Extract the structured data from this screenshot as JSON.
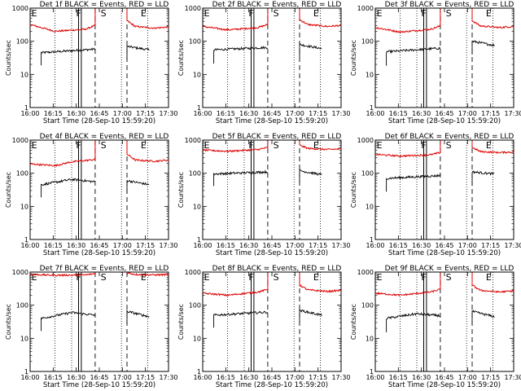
{
  "figure": {
    "xlabel": "Start Time (28-Sep-10 15:59:20)",
    "ylabel": "Counts/sec",
    "x_tick_labels": [
      "16:00",
      "16:15",
      "16:30",
      "16:45",
      "17:00",
      "17:15",
      "17:30"
    ],
    "y_tick_labels": [
      "1",
      "10",
      "100",
      "1000"
    ],
    "colors": {
      "events": "#000000",
      "lld": "#dd0000"
    }
  },
  "chart_data": [
    {
      "type": "line",
      "panel": 1,
      "title": "Det 1f BLACK = Events, RED = LLD",
      "xlabel": "Start Time (28-Sep-10 15:59:20)",
      "ylabel": "Counts/sec",
      "yscale": "log",
      "xlim": [
        0,
        100
      ],
      "ylim": [
        1,
        1000
      ],
      "series": [
        {
          "name": "Events",
          "color": "#000000",
          "segments": [
            {
              "x": [
                8,
                47
              ],
              "y": [
                45,
                58
              ]
            },
            {
              "x": [
                70,
                86
              ],
              "y": [
                70,
                55
              ]
            }
          ]
        },
        {
          "name": "LLD",
          "color": "#dd0000",
          "segments": [
            {
              "x": [
                0,
                18,
                40,
                47
              ],
              "y": [
                320,
                200,
                230,
                300
              ]
            },
            {
              "x": [
                70,
                76,
                90,
                100
              ],
              "y": [
                420,
                280,
                250,
                270
              ]
            }
          ]
        }
      ],
      "markers": [
        {
          "label": "E",
          "x": 3
        },
        {
          "label": "F",
          "x": 35
        },
        {
          "label": "S",
          "x": 53
        },
        {
          "label": "E",
          "x": 82
        }
      ]
    },
    {
      "type": "line",
      "panel": 2,
      "title": "Det 2f BLACK = Events, RED = LLD",
      "xlabel": "Start Time (28-Sep-10 15:59:20)",
      "ylabel": "Counts/sec",
      "yscale": "log",
      "xlim": [
        0,
        100
      ],
      "ylim": [
        1,
        1000
      ],
      "series": [
        {
          "name": "Events",
          "color": "#000000",
          "segments": [
            {
              "x": [
                8,
                47
              ],
              "y": [
                55,
                65
              ]
            },
            {
              "x": [
                70,
                86
              ],
              "y": [
                80,
                60
              ]
            }
          ]
        },
        {
          "name": "LLD",
          "color": "#dd0000",
          "segments": [
            {
              "x": [
                0,
                18,
                40,
                47
              ],
              "y": [
                280,
                220,
                260,
                320
              ]
            },
            {
              "x": [
                70,
                76,
                90,
                100
              ],
              "y": [
                450,
                320,
                280,
                300
              ]
            }
          ]
        }
      ],
      "markers": [
        {
          "label": "E",
          "x": 3
        },
        {
          "label": "F",
          "x": 35
        },
        {
          "label": "S",
          "x": 53
        },
        {
          "label": "E",
          "x": 82
        }
      ]
    },
    {
      "type": "line",
      "panel": 3,
      "title": "Det 3f BLACK = Events, RED = LLD",
      "xlabel": "Start Time (28-Sep-10 15:59:20)",
      "ylabel": "Counts/sec",
      "yscale": "log",
      "xlim": [
        0,
        100
      ],
      "ylim": [
        1,
        1000
      ],
      "series": [
        {
          "name": "Events",
          "color": "#000000",
          "segments": [
            {
              "x": [
                8,
                47
              ],
              "y": [
                48,
                62
              ]
            },
            {
              "x": [
                70,
                86
              ],
              "y": [
                100,
                75
              ]
            }
          ]
        },
        {
          "name": "LLD",
          "color": "#dd0000",
          "segments": [
            {
              "x": [
                0,
                18,
                40,
                47
              ],
              "y": [
                260,
                190,
                230,
                290
              ]
            },
            {
              "x": [
                70,
                76,
                90,
                100
              ],
              "y": [
                420,
                290,
                260,
                280
              ]
            }
          ]
        }
      ],
      "markers": [
        {
          "label": "E",
          "x": 3
        },
        {
          "label": "F",
          "x": 35
        },
        {
          "label": "S",
          "x": 53
        },
        {
          "label": "E",
          "x": 82
        }
      ]
    },
    {
      "type": "line",
      "panel": 4,
      "title": "Det 4f BLACK = Events, RED = LLD",
      "xlabel": "Start Time (28-Sep-10 15:59:20)",
      "ylabel": "Counts/sec",
      "yscale": "log",
      "xlim": [
        0,
        100
      ],
      "ylim": [
        1,
        1000
      ],
      "series": [
        {
          "name": "Events",
          "color": "#000000",
          "segments": [
            {
              "x": [
                8,
                30,
                47
              ],
              "y": [
                45,
                65,
                55
              ]
            },
            {
              "x": [
                70,
                86
              ],
              "y": [
                60,
                45
              ]
            }
          ]
        },
        {
          "name": "LLD",
          "color": "#dd0000",
          "segments": [
            {
              "x": [
                0,
                18,
                30,
                47
              ],
              "y": [
                190,
                170,
                220,
                260
              ]
            },
            {
              "x": [
                70,
                76,
                90,
                100
              ],
              "y": [
                380,
                250,
                230,
                250
              ]
            }
          ]
        }
      ],
      "markers": [
        {
          "label": "E",
          "x": 3
        },
        {
          "label": "F",
          "x": 35
        },
        {
          "label": "S",
          "x": 53
        },
        {
          "label": "E",
          "x": 82
        }
      ]
    },
    {
      "type": "line",
      "panel": 5,
      "title": "Det 5f BLACK = Events, RED = LLD",
      "xlabel": "Start Time (28-Sep-10 15:59:20)",
      "ylabel": "Counts/sec",
      "yscale": "log",
      "xlim": [
        0,
        100
      ],
      "ylim": [
        1,
        1000
      ],
      "series": [
        {
          "name": "Events",
          "color": "#000000",
          "segments": [
            {
              "x": [
                8,
                47
              ],
              "y": [
                95,
                110
              ]
            },
            {
              "x": [
                70,
                86
              ],
              "y": [
                120,
                90
              ]
            }
          ]
        },
        {
          "name": "LLD",
          "color": "#dd0000",
          "segments": [
            {
              "x": [
                0,
                18,
                40,
                47
              ],
              "y": [
                500,
                460,
                520,
                600
              ]
            },
            {
              "x": [
                70,
                76,
                90,
                100
              ],
              "y": [
                700,
                560,
                520,
                540
              ]
            }
          ]
        }
      ],
      "markers": [
        {
          "label": "E",
          "x": 3
        },
        {
          "label": "F",
          "x": 35
        },
        {
          "label": "S",
          "x": 53
        },
        {
          "label": "E",
          "x": 82
        }
      ]
    },
    {
      "type": "line",
      "panel": 6,
      "title": "Det 6f BLACK = Events, RED = LLD",
      "xlabel": "Start Time (28-Sep-10 15:59:20)",
      "ylabel": "Counts/sec",
      "yscale": "log",
      "xlim": [
        0,
        100
      ],
      "ylim": [
        1,
        1000
      ],
      "series": [
        {
          "name": "Events",
          "color": "#000000",
          "segments": [
            {
              "x": [
                8,
                47
              ],
              "y": [
                70,
                85
              ]
            },
            {
              "x": [
                70,
                86
              ],
              "y": [
                110,
                95
              ]
            }
          ]
        },
        {
          "name": "LLD",
          "color": "#dd0000",
          "segments": [
            {
              "x": [
                0,
                18,
                40,
                47
              ],
              "y": [
                370,
                330,
                360,
                420
              ]
            },
            {
              "x": [
                70,
                76,
                90,
                100
              ],
              "y": [
                600,
                450,
                420,
                440
              ]
            }
          ]
        }
      ],
      "markers": [
        {
          "label": "E",
          "x": 3
        },
        {
          "label": "F",
          "x": 35
        },
        {
          "label": "S",
          "x": 53
        },
        {
          "label": "E",
          "x": 82
        }
      ]
    },
    {
      "type": "line",
      "panel": 7,
      "title": "Det 7f BLACK = Events, RED = LLD",
      "xlabel": "Start Time (28-Sep-10 15:59:20)",
      "ylabel": "Counts/sec",
      "yscale": "log",
      "xlim": [
        0,
        100
      ],
      "ylim": [
        1,
        1000
      ],
      "series": [
        {
          "name": "Events",
          "color": "#000000",
          "segments": [
            {
              "x": [
                8,
                30,
                47
              ],
              "y": [
                40,
                60,
                50
              ]
            },
            {
              "x": [
                70,
                86
              ],
              "y": [
                65,
                45
              ]
            }
          ]
        },
        {
          "name": "LLD",
          "color": "#dd0000",
          "segments": [
            {
              "x": [
                0,
                18,
                40,
                47
              ],
              "y": [
                850,
                800,
                820,
                900
              ]
            },
            {
              "x": [
                70,
                76,
                90,
                100
              ],
              "y": [
                950,
                850,
                820,
                840
              ]
            }
          ]
        }
      ],
      "markers": [
        {
          "label": "E",
          "x": 3
        },
        {
          "label": "F",
          "x": 35
        },
        {
          "label": "S",
          "x": 53
        },
        {
          "label": "E",
          "x": 82
        }
      ]
    },
    {
      "type": "line",
      "panel": 8,
      "title": "Det 8f BLACK = Events, RED = LLD",
      "xlabel": "Start Time (28-Sep-10 15:59:20)",
      "ylabel": "Counts/sec",
      "yscale": "log",
      "xlim": [
        0,
        100
      ],
      "ylim": [
        1,
        1000
      ],
      "series": [
        {
          "name": "Events",
          "color": "#000000",
          "segments": [
            {
              "x": [
                8,
                47
              ],
              "y": [
                50,
                62
              ]
            },
            {
              "x": [
                70,
                86
              ],
              "y": [
                70,
                50
              ]
            }
          ]
        },
        {
          "name": "LLD",
          "color": "#dd0000",
          "segments": [
            {
              "x": [
                0,
                18,
                40,
                47
              ],
              "y": [
                230,
                200,
                250,
                300
              ]
            },
            {
              "x": [
                70,
                76,
                90,
                100
              ],
              "y": [
                400,
                290,
                260,
                280
              ]
            }
          ]
        }
      ],
      "markers": [
        {
          "label": "E",
          "x": 3
        },
        {
          "label": "F",
          "x": 35
        },
        {
          "label": "S",
          "x": 53
        },
        {
          "label": "E",
          "x": 82
        }
      ]
    },
    {
      "type": "line",
      "panel": 9,
      "title": "Det 9f BLACK = Events, RED = LLD",
      "xlabel": "Start Time (28-Sep-10 15:59:20)",
      "ylabel": "Counts/sec",
      "yscale": "log",
      "xlim": [
        0,
        100
      ],
      "ylim": [
        1,
        1000
      ],
      "series": [
        {
          "name": "Events",
          "color": "#000000",
          "segments": [
            {
              "x": [
                8,
                30,
                47
              ],
              "y": [
                40,
                55,
                48
              ]
            },
            {
              "x": [
                70,
                86
              ],
              "y": [
                65,
                45
              ]
            }
          ]
        },
        {
          "name": "LLD",
          "color": "#dd0000",
          "segments": [
            {
              "x": [
                0,
                18,
                40,
                47
              ],
              "y": [
                230,
                200,
                250,
                300
              ]
            },
            {
              "x": [
                70,
                76,
                90,
                100
              ],
              "y": [
                400,
                280,
                250,
                270
              ]
            }
          ]
        }
      ],
      "markers": [
        {
          "label": "E",
          "x": 3
        },
        {
          "label": "F",
          "x": 35
        },
        {
          "label": "S",
          "x": 53
        },
        {
          "label": "E",
          "x": 82
        }
      ]
    }
  ]
}
